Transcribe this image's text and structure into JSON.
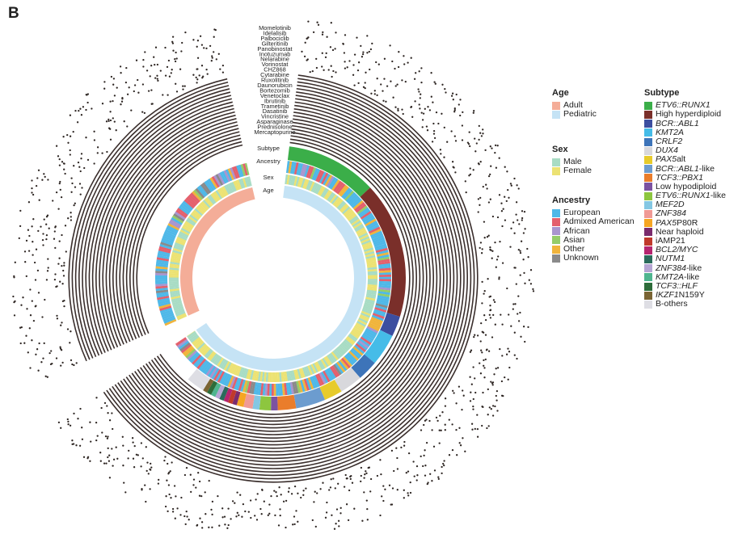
{
  "panel_label": "B",
  "chart_data": {
    "type": "circos",
    "tracks": [
      "Subtype",
      "Ancestry",
      "Sex",
      "Age"
    ],
    "drugs": [
      "Momelotinib",
      "Idelalisib",
      "Palbociclib",
      "Gilteritinib",
      "Panobinostat",
      "Inotuzumab",
      "Nelarabine",
      "Vorinostat",
      "CHZ868",
      "Cytarabine",
      "Ruxolitinib",
      "Daunorubicin",
      "Bortezomib",
      "Venetoclax",
      "Ibrutinib",
      "Trametinib",
      "Dasatinib",
      "Vincristine",
      "Asparaginase",
      "Prednisolone",
      "Mercaptopurine"
    ],
    "age": {
      "title": "Age",
      "categories": [
        {
          "label": "Adult",
          "color": "#f4ad98",
          "fraction": 0.24
        },
        {
          "label": "Pediatric",
          "color": "#c5e3f5",
          "fraction": 0.76
        }
      ]
    },
    "sex": {
      "title": "Sex",
      "categories": [
        {
          "label": "Male",
          "color": "#a8dcc4"
        },
        {
          "label": "Female",
          "color": "#ece273"
        }
      ]
    },
    "ancestry": {
      "title": "Ancestry",
      "categories": [
        {
          "label": "European",
          "color": "#4fb8e8"
        },
        {
          "label": "Admixed American",
          "color": "#e4606d"
        },
        {
          "label": "African",
          "color": "#a995cf"
        },
        {
          "label": "Asian",
          "color": "#95cc6a"
        },
        {
          "label": "Other",
          "color": "#f0b43c"
        },
        {
          "label": "Unknown",
          "color": "#8a8a8a"
        }
      ]
    },
    "subtype": {
      "title": "Subtype",
      "categories": [
        {
          "label": "ETV6::RUNX1",
          "italic": "ETV6::RUNX1",
          "suffix": "",
          "color": "#3bae49",
          "angle_deg": 40
        },
        {
          "label": "High hyperdiploid",
          "italic": "",
          "suffix": "High hyperdiploid",
          "color": "#7a2f2a",
          "angle_deg": 60
        },
        {
          "label": "BCR::ABL1",
          "italic": "BCR::ABL1",
          "suffix": "",
          "color": "#3c4ea0",
          "angle_deg": 9
        },
        {
          "label": "KMT2A",
          "italic": "KMT2A",
          "suffix": "",
          "color": "#45bce8",
          "angle_deg": 14
        },
        {
          "label": "CRLF2",
          "italic": "CRLF2",
          "suffix": "",
          "color": "#3d74b9",
          "angle_deg": 9
        },
        {
          "label": "DUX4",
          "italic": "DUX4",
          "suffix": "",
          "color": "#d8d8dc",
          "angle_deg": 10
        },
        {
          "label": "PAX5alt",
          "italic": "PAX5",
          "suffix": "alt",
          "color": "#e7cb2b",
          "angle_deg": 8
        },
        {
          "label": "BCR::ABL1-like",
          "italic": "BCR::ABL1",
          "suffix": "-like",
          "color": "#6c9ccf",
          "angle_deg": 13
        },
        {
          "label": "TCF3::PBX1",
          "italic": "TCF3::PBX1",
          "suffix": "",
          "color": "#ea7d2b",
          "angle_deg": 8
        },
        {
          "label": "Low hypodiploid",
          "italic": "",
          "suffix": "Low hypodiploid",
          "color": "#7c52a1",
          "angle_deg": 3
        },
        {
          "label": "ETV6::RUNX1-like",
          "italic": "ETV6::RUNX1",
          "suffix": "-like",
          "color": "#8dc63f",
          "angle_deg": 5
        },
        {
          "label": "MEF2D",
          "italic": "MEF2D",
          "suffix": "",
          "color": "#84c7e3",
          "angle_deg": 3
        },
        {
          "label": "ZNF384",
          "italic": "ZNF384",
          "suffix": "",
          "color": "#f09a96",
          "angle_deg": 4
        },
        {
          "label": "PAX5 P80R",
          "italic": "PAX5",
          "suffix": " P80R",
          "color": "#f6a623",
          "angle_deg": 3
        },
        {
          "label": "Near haploid",
          "italic": "",
          "suffix": "Near haploid",
          "color": "#7a2b6d",
          "angle_deg": 2
        },
        {
          "label": "iAMP21",
          "italic": "",
          "suffix": "iAMP21",
          "color": "#c0392b",
          "angle_deg": 2
        },
        {
          "label": "BCL2/MYC",
          "italic": "BCL2/MYC",
          "suffix": "",
          "color": "#b5256f",
          "angle_deg": 2
        },
        {
          "label": "NUTM1",
          "italic": "NUTM1",
          "suffix": "",
          "color": "#2a6b5b",
          "angle_deg": 2
        },
        {
          "label": "ZNF384-like",
          "italic": "ZNF384",
          "suffix": "-like",
          "color": "#b5a5d3",
          "angle_deg": 2
        },
        {
          "label": "KMT2A-like",
          "italic": "KMT2A",
          "suffix": "-like",
          "color": "#4fb58f",
          "angle_deg": 2
        },
        {
          "label": "TCF3::HLF",
          "italic": "TCF3::HLF",
          "suffix": "",
          "color": "#2d6c3a",
          "angle_deg": 2
        },
        {
          "label": "IKZF1 N159Y",
          "italic": "IKZF1",
          "suffix": " N159Y",
          "color": "#7a6433",
          "angle_deg": 2
        },
        {
          "label": "B-others",
          "italic": "",
          "suffix": "B-others",
          "color": "#dedee4",
          "angle_deg": 8
        }
      ]
    }
  }
}
